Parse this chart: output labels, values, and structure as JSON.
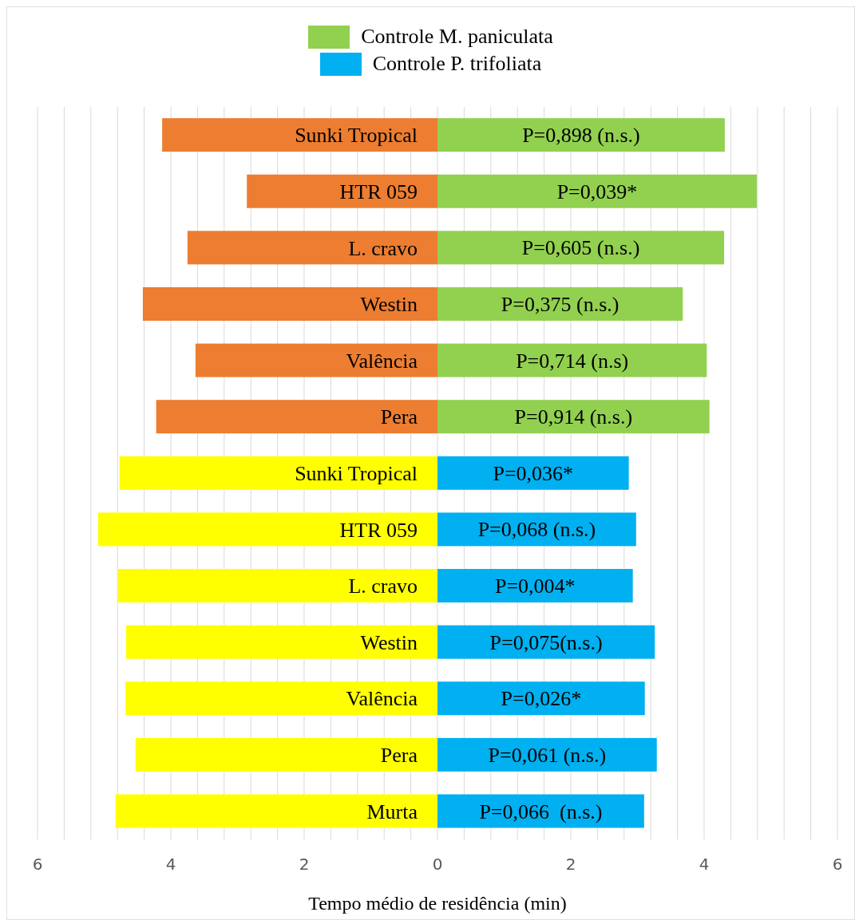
{
  "chart_data": {
    "type": "bar",
    "orientation": "horizontal",
    "stacked": true,
    "categories": [
      "Sunki Tropical",
      "HTR 059",
      "L. cravo",
      "Westin",
      "Valência",
      "Pera",
      "Sunki Tropical",
      "HTR 059",
      "L. cravo",
      "Westin",
      "Valência",
      "Pera",
      "Murta"
    ],
    "series": [
      {
        "color": "#ed7d31",
        "values": [
          -4.13,
          -2.86,
          -3.75,
          -4.42,
          -3.63,
          -4.22,
          null,
          null,
          null,
          null,
          null,
          null,
          null
        ]
      },
      {
        "color": "#ffff00",
        "values": [
          null,
          null,
          null,
          null,
          null,
          null,
          -4.77,
          -5.09,
          -4.79,
          -4.67,
          -4.68,
          -4.53,
          -4.83
        ]
      },
      {
        "name": "Controle M. paniculata",
        "color": "#92d050",
        "values": [
          4.31,
          4.79,
          4.3,
          3.68,
          4.04,
          4.08,
          null,
          null,
          null,
          null,
          null,
          null,
          null
        ]
      },
      {
        "name": "Controle P. trifoliata",
        "color": "#00b0f0",
        "values": [
          null,
          null,
          null,
          null,
          null,
          null,
          2.87,
          2.98,
          2.93,
          3.26,
          3.11,
          3.29,
          3.1
        ]
      }
    ],
    "annotations": [
      "P=0,898 (n.s.)",
      "P=0,039*",
      "P=0,605 (n.s.)",
      "P=0,375 (n.s.)",
      "P=0,714 (n.s)",
      "P=0,914 (n.s.)",
      "P=0,036*",
      "P=0,068 (n.s.)",
      "P=0,004*",
      "P=0,075(n.s.)",
      "P=0,026*",
      "P=0,061 (n.s.)",
      "P=0,066  (n.s.)"
    ],
    "xlabel": "Tempo médio de residência (min)",
    "xlim": [
      -6,
      6
    ],
    "xticks": [
      {
        "value": -6,
        "label": "6"
      },
      {
        "value": -5.6,
        "label": null
      },
      {
        "value": -5.2,
        "label": null
      },
      {
        "value": -4.8,
        "label": null
      },
      {
        "value": -4.4,
        "label": null
      },
      {
        "value": -4,
        "label": "4"
      },
      {
        "value": -3.6,
        "label": null
      },
      {
        "value": -3.2,
        "label": null
      },
      {
        "value": -2.8,
        "label": null
      },
      {
        "value": -2.4,
        "label": null
      },
      {
        "value": -2,
        "label": "2"
      },
      {
        "value": -1.6,
        "label": null
      },
      {
        "value": -1.2,
        "label": null
      },
      {
        "value": -0.8,
        "label": null
      },
      {
        "value": -0.4,
        "label": null
      },
      0,
      {
        "value": 0.4,
        "label": null
      },
      {
        "value": 0.8,
        "label": null
      },
      {
        "value": 1.2,
        "label": null
      },
      {
        "value": 1.6,
        "label": null
      },
      2,
      {
        "value": 2.4,
        "label": null
      },
      {
        "value": 2.8,
        "label": null
      },
      {
        "value": 3.2,
        "label": null
      },
      {
        "value": 3.6,
        "label": null
      },
      4,
      {
        "value": 4.4,
        "label": null
      },
      {
        "value": 4.8,
        "label": null
      },
      {
        "value": 5.2,
        "label": null
      },
      {
        "value": 5.6,
        "label": null
      },
      6
    ],
    "grid": "x",
    "legend": "top"
  }
}
